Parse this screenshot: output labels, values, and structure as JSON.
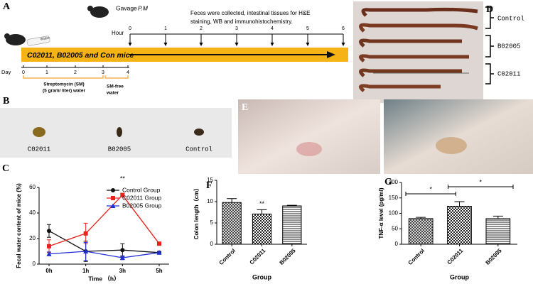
{
  "panel_a": {
    "letter": "A",
    "bottle": "Water",
    "gavage": "Gavage",
    "gavage_time": "P.M",
    "note": [
      "Feces were collected, intestinal tissues for H&E",
      "staining, WB and immunohistochemistry."
    ],
    "hour_label": "Hour",
    "hours": [
      0,
      1,
      2,
      3,
      4,
      5,
      6
    ],
    "bar_label": "C02011, B02005 and Con mice",
    "day_label": "Day",
    "days": [
      0,
      1,
      2,
      3,
      4
    ],
    "sm_label": [
      "Streptomycin (SM)",
      "(5 gram/ liter) water"
    ],
    "free_label": [
      "SM-free",
      "water"
    ]
  },
  "panel_b": {
    "letter": "B",
    "labels": [
      "C02011",
      "B02005",
      "Control"
    ]
  },
  "panel_c": {
    "letter": "C"
  },
  "panel_d": {
    "letter": "D",
    "labels": [
      "Control",
      "B02005",
      "C02011"
    ]
  },
  "panel_e": {
    "letter": "E"
  },
  "panel_f": {
    "letter": "F"
  },
  "panel_g": {
    "letter": "G"
  },
  "chart_data": [
    {
      "type": "line",
      "ylabel": "Fecal water content of mice (%)",
      "xlabel": "Time （h）",
      "categories": [
        "0h",
        "1h",
        "3h",
        "5h"
      ],
      "series": [
        {
          "name": "Control Group",
          "color": "#111111",
          "marker": "circle",
          "values": [
            26,
            10,
            11,
            9
          ],
          "errors": [
            5,
            8,
            5,
            1
          ]
        },
        {
          "name": "C02011 Group",
          "color": "#e8231c",
          "marker": "square",
          "values": [
            14,
            24,
            54,
            16
          ],
          "errors": [
            5,
            8,
            1.5,
            1
          ]
        },
        {
          "name": "B02005 Group",
          "color": "#1f2fd6",
          "marker": "triangle",
          "values": [
            8,
            10,
            5,
            9
          ],
          "errors": [
            1.5,
            7,
            1.5,
            0.5
          ]
        }
      ],
      "ylim": [
        0,
        60
      ],
      "yticks": [
        0,
        20,
        40,
        60
      ],
      "legend": "top-right",
      "annotations": [
        "**"
      ]
    },
    {
      "type": "bar",
      "ylabel": "Colon length（cm）",
      "xlabel": "Group",
      "categories": [
        "Control",
        "C02011",
        "B02005"
      ],
      "values": [
        9.8,
        7.1,
        9.0
      ],
      "errors": [
        0.9,
        1.0,
        0.15
      ],
      "patterns": [
        "crosshatch",
        "checker",
        "hlines"
      ],
      "ylim": [
        0,
        15
      ],
      "yticks": [
        0,
        5,
        10,
        15
      ],
      "annotations": [
        "**"
      ]
    },
    {
      "type": "bar",
      "ylabel": "TNF-α level (pg/ml)",
      "xlabel": "Group",
      "categories": [
        "Control",
        "C02011",
        "B02005"
      ],
      "values": [
        83,
        123,
        83
      ],
      "errors": [
        4,
        15,
        8
      ],
      "patterns": [
        "crosshatch",
        "checker",
        "hlines"
      ],
      "ylim": [
        0,
        200
      ],
      "yticks": [
        0,
        50,
        100,
        150,
        200
      ],
      "annotations": [
        "*",
        "*"
      ]
    }
  ]
}
